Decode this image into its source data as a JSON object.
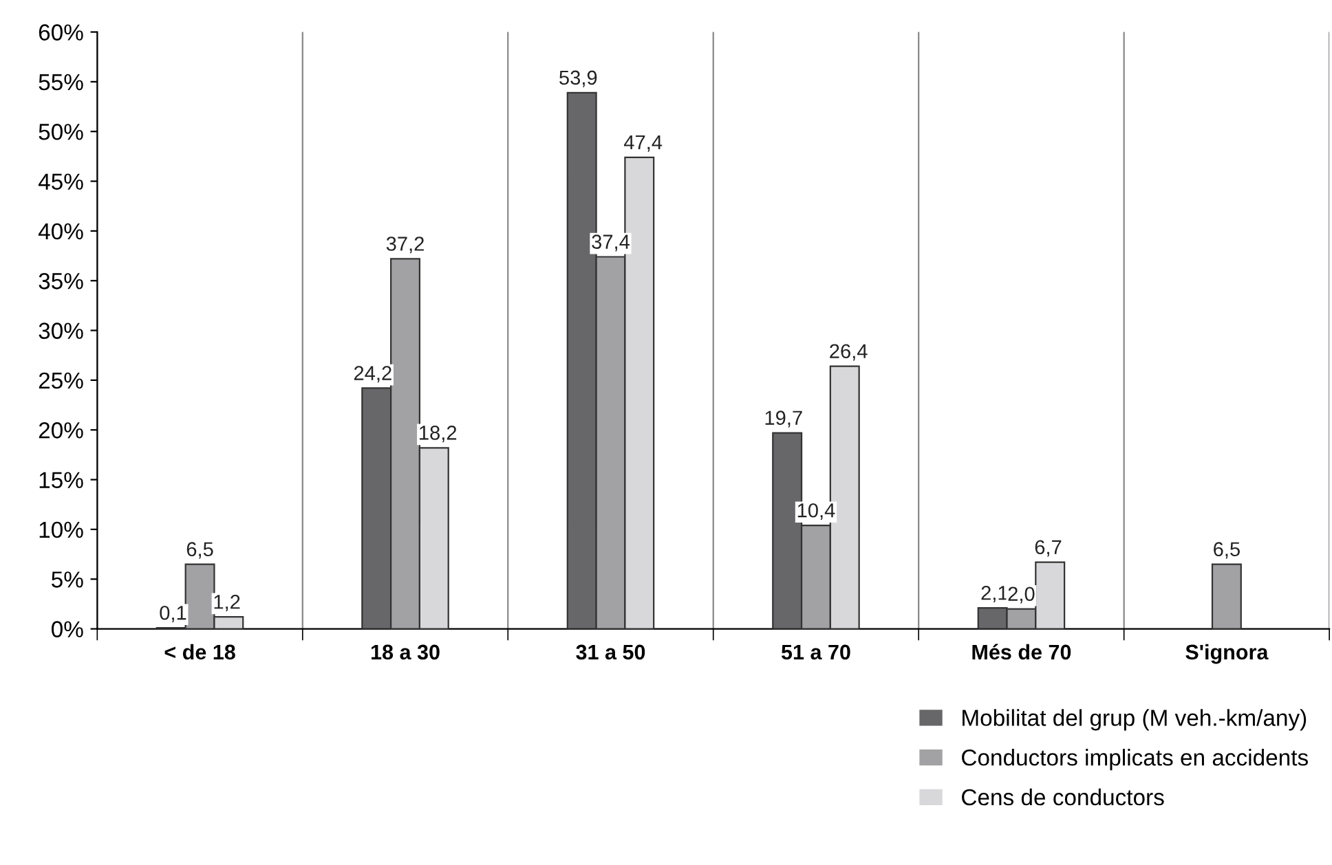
{
  "chart_data": {
    "type": "bar",
    "categories": [
      "< de 18",
      "18 a 30",
      "31 a 50",
      "51 a 70",
      "Més de 70",
      "S'ignora"
    ],
    "series": [
      {
        "name": "Mobilitat del grup (M veh.-km/any)",
        "color": "#67676a",
        "values": [
          0.1,
          24.2,
          53.9,
          19.7,
          2.1,
          null
        ],
        "value_labels": [
          "0,1",
          "24,2",
          "53,9",
          "19,7",
          "2,1",
          null
        ]
      },
      {
        "name": "Conductors implicats en accidents",
        "color": "#a2a2a5",
        "values": [
          6.5,
          37.2,
          37.4,
          10.4,
          2.0,
          6.5
        ],
        "value_labels": [
          "6,5",
          "37,2",
          "37,4",
          "10,4",
          "2,0",
          "6,5"
        ]
      },
      {
        "name": "Cens de conductors",
        "color": "#d8d8da",
        "values": [
          1.2,
          18.2,
          47.4,
          26.4,
          6.7,
          null
        ],
        "value_labels": [
          "1,2",
          "18,2",
          "47,4",
          "26,4",
          "6,7",
          null
        ]
      }
    ],
    "ylim": [
      0,
      60
    ],
    "yticks": [
      {
        "value": 0,
        "label": "0%"
      },
      {
        "value": 5,
        "label": "5%"
      },
      {
        "value": 10,
        "label": "10%"
      },
      {
        "value": 15,
        "label": "15%"
      },
      {
        "value": 20,
        "label": "20%"
      },
      {
        "value": 25,
        "label": "25%"
      },
      {
        "value": 30,
        "label": "30%"
      },
      {
        "value": 35,
        "label": "35%"
      },
      {
        "value": 40,
        "label": "40%"
      },
      {
        "value": 45,
        "label": "45%"
      },
      {
        "value": 50,
        "label": "50%"
      },
      {
        "value": 55,
        "label": "55%"
      },
      {
        "value": 60,
        "label": "60%"
      }
    ],
    "grid": "x",
    "legend": "bottom right"
  }
}
